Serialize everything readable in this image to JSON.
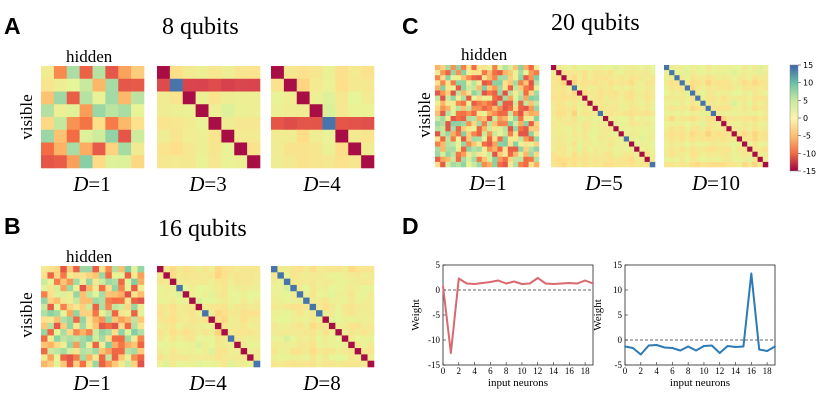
{
  "colors": {
    "low": "#b1163e",
    "mid": "#fbf5ad",
    "high": "#3f62ad",
    "red_line": "#d9696f",
    "blue_line": "#2c7bb6"
  },
  "panels": {
    "A": {
      "label": "A",
      "title": "8 qubits",
      "matrices": [
        {
          "d_var": "D",
          "d_value": "=1",
          "type": "random",
          "n": 8,
          "seed": 11,
          "show_axes": true
        },
        {
          "d_var": "D",
          "d_value": "=3",
          "type": "diag",
          "n": 8,
          "seed": 21,
          "band_rows": [
            1
          ],
          "band_value": -9,
          "blue_cells": [
            1
          ]
        },
        {
          "d_var": "D",
          "d_value": "=4",
          "type": "diag",
          "n": 8,
          "seed": 31,
          "band_rows": [
            4
          ],
          "band_value": -8,
          "blue_cells": [
            4
          ]
        }
      ]
    },
    "B": {
      "label": "B",
      "title": "16 qubits",
      "matrices": [
        {
          "d_var": "D",
          "d_value": "=1",
          "type": "random",
          "n": 16,
          "seed": 41,
          "show_axes": true
        },
        {
          "d_var": "D",
          "d_value": "=4",
          "type": "diag",
          "n": 16,
          "seed": 51,
          "band_rows": [],
          "band_value": -5,
          "blue_cells": [
            3,
            7,
            11,
            15
          ]
        },
        {
          "d_var": "D",
          "d_value": "=8",
          "type": "diag",
          "n": 16,
          "seed": 61,
          "band_rows": [],
          "band_value": -5,
          "blue_cells": [
            0,
            1,
            2,
            3,
            4,
            5,
            6,
            7
          ]
        }
      ]
    },
    "C": {
      "label": "C",
      "title": "20 qubits",
      "matrices": [
        {
          "d_var": "D",
          "d_value": "=1",
          "type": "random",
          "n": 20,
          "seed": 71,
          "show_axes": true
        },
        {
          "d_var": "D",
          "d_value": "=5",
          "type": "diag",
          "n": 20,
          "seed": 81,
          "band_rows": [],
          "band_value": -5,
          "blue_cells": [
            4,
            9,
            14,
            19
          ]
        },
        {
          "d_var": "D",
          "d_value": "=10",
          "type": "diag",
          "n": 20,
          "seed": 91,
          "band_rows": [],
          "band_value": -5,
          "blue_cells": [
            0,
            1,
            2,
            3,
            4,
            5,
            6,
            7,
            8,
            9
          ]
        }
      ]
    },
    "D": {
      "label": "D"
    }
  },
  "axis_labels": {
    "hidden": "hidden",
    "visible": "visible"
  },
  "colorbar": {
    "min": -15,
    "max": 15,
    "ticks": [
      "15",
      "10",
      "5",
      "0",
      "-5",
      "-10",
      "-15"
    ],
    "tick_values": [
      15,
      10,
      5,
      0,
      -5,
      -10,
      -15
    ]
  },
  "chart_data": [
    {
      "type": "line",
      "xlabel": "input neurons",
      "ylabel": "Weight",
      "xlim": [
        0,
        19
      ],
      "ylim": [
        -15,
        5
      ],
      "xticks": [
        0,
        2,
        4,
        6,
        8,
        10,
        12,
        14,
        16,
        18
      ],
      "yticks": [
        5,
        0,
        -5,
        -10,
        -15
      ],
      "ytick_labels": [
        "5",
        "0",
        "-5",
        "-10",
        "-15"
      ],
      "xtick_labels": [
        "0",
        "2",
        "4",
        "6",
        "8",
        "10",
        "12",
        "14",
        "16",
        "18"
      ],
      "reference_y": 0,
      "series": [
        {
          "name": "weights",
          "color": "#d9696f",
          "x": [
            0,
            1,
            2,
            3,
            4,
            5,
            6,
            7,
            8,
            9,
            10,
            11,
            12,
            13,
            14,
            15,
            16,
            17,
            18,
            19
          ],
          "y": [
            0.8,
            -12.6,
            2.3,
            1.3,
            1.2,
            1.4,
            1.6,
            1.9,
            1.3,
            1.7,
            1.2,
            1.3,
            2.4,
            1.3,
            1.2,
            1.3,
            1.4,
            1.3,
            1.9,
            1.3
          ]
        }
      ]
    },
    {
      "type": "line",
      "xlabel": "input neurons",
      "ylabel": "Weight",
      "xlim": [
        0,
        19
      ],
      "ylim": [
        -5,
        15
      ],
      "xticks": [
        0,
        2,
        4,
        6,
        8,
        10,
        12,
        14,
        16,
        18
      ],
      "yticks": [
        15,
        10,
        5,
        0,
        -5
      ],
      "ytick_labels": [
        "15",
        "10",
        "5",
        "0",
        "-5"
      ],
      "xtick_labels": [
        "0",
        "2",
        "4",
        "6",
        "8",
        "10",
        "12",
        "14",
        "16",
        "18"
      ],
      "reference_y": 0,
      "series": [
        {
          "name": "weights",
          "color": "#2c7bb6",
          "x": [
            0,
            1,
            2,
            3,
            4,
            5,
            6,
            7,
            8,
            9,
            10,
            11,
            12,
            13,
            14,
            15,
            16,
            17,
            18,
            19
          ],
          "y": [
            -1.3,
            -1.6,
            -2.9,
            -1.1,
            -1.0,
            -1.5,
            -1.6,
            -2.1,
            -1.3,
            -2.1,
            -1.2,
            -1.1,
            -2.6,
            -1.2,
            -1.4,
            -1.3,
            13.3,
            -1.9,
            -2.2,
            -1.3
          ]
        }
      ]
    }
  ]
}
